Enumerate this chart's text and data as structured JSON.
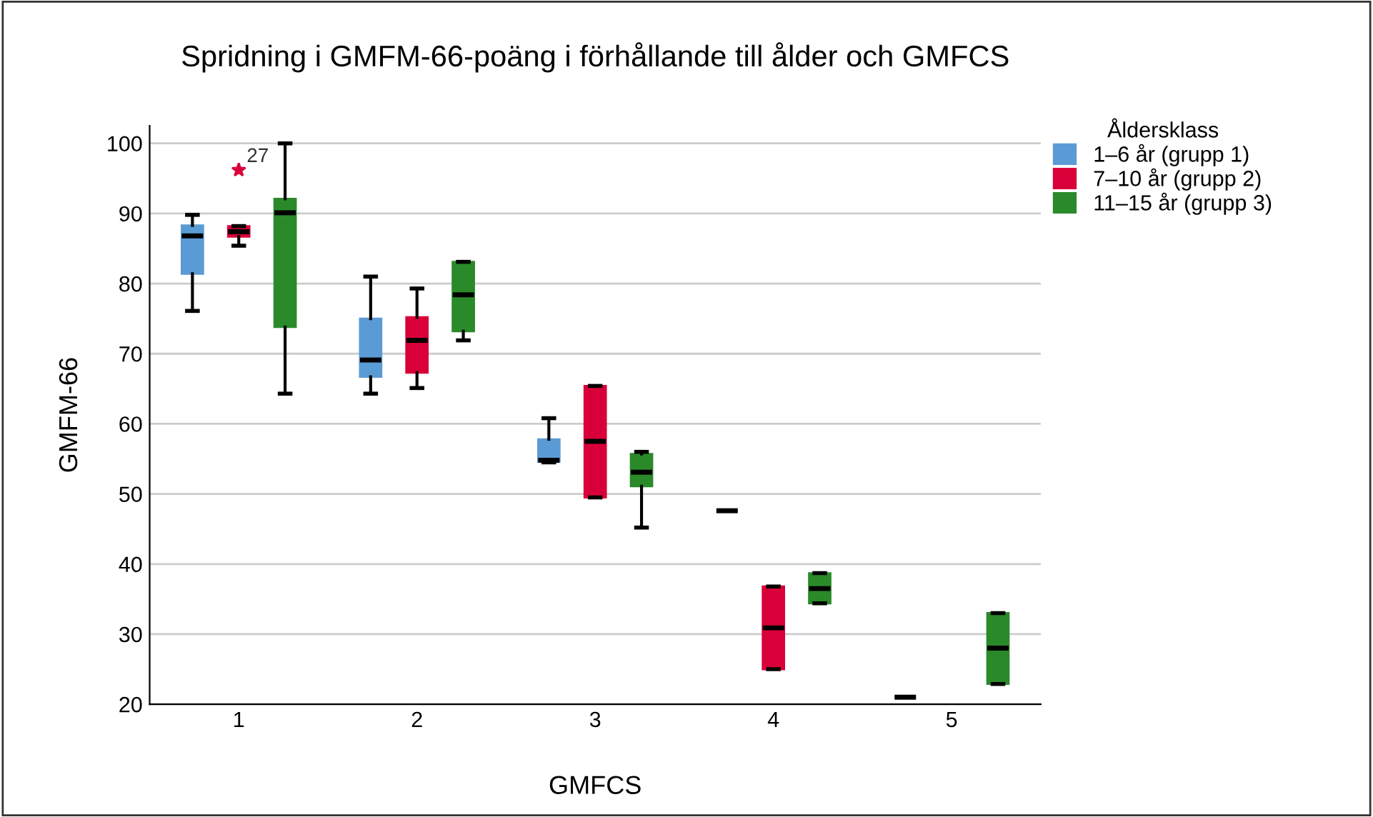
{
  "chart_data": {
    "type": "box",
    "title": "Spridning i GMFM-66-poäng i förhållande till ålder och GMFCS",
    "xlabel": "GMFCS",
    "ylabel": "GMFM-66",
    "legend_title": "Åldersklass",
    "categories": [
      "1",
      "2",
      "3",
      "4",
      "5"
    ],
    "series": [
      {
        "name": "1–6 år (grupp 1)",
        "color": "#5b9bd5",
        "boxes": [
          {
            "low": 76.1,
            "q1": 81.4,
            "median": 86.8,
            "q3": 88.3,
            "high": 89.8
          },
          {
            "low": 64.3,
            "q1": 66.7,
            "median": 69.1,
            "q3": 75.0,
            "high": 81.0
          },
          {
            "low": 54.5,
            "q1": 54.6,
            "median": 54.8,
            "q3": 57.8,
            "high": 60.8
          },
          {
            "low": 47.6,
            "q1": 47.6,
            "median": 47.6,
            "q3": 47.6,
            "high": 47.6
          },
          {
            "low": 21.0,
            "q1": 21.0,
            "median": 21.0,
            "q3": 21.0,
            "high": 21.0
          }
        ]
      },
      {
        "name": "7–10 år (grupp 2)",
        "color": "#d9003a",
        "boxes": [
          {
            "low": 85.4,
            "q1": 86.7,
            "median": 87.4,
            "q3": 88.2,
            "high": 88.2,
            "outliers": [
              96.2
            ]
          },
          {
            "low": 65.1,
            "q1": 67.3,
            "median": 71.9,
            "q3": 75.2,
            "high": 79.3
          },
          {
            "low": 49.5,
            "q1": 49.5,
            "median": 57.5,
            "q3": 65.4,
            "high": 65.4
          },
          {
            "low": 25.0,
            "q1": 25.0,
            "median": 30.9,
            "q3": 36.8,
            "high": 36.8
          },
          null
        ]
      },
      {
        "name": "11–15 år (grupp 3)",
        "color": "#2a8a2a",
        "boxes": [
          {
            "low": 64.3,
            "q1": 73.8,
            "median": 90.1,
            "q3": 92.1,
            "high": 100
          },
          {
            "low": 71.9,
            "q1": 73.2,
            "median": 78.4,
            "q3": 83.1,
            "high": 83.1
          },
          {
            "low": 45.2,
            "q1": 51.1,
            "median": 53.1,
            "q3": 55.7,
            "high": 56.0
          },
          {
            "low": 34.4,
            "q1": 34.4,
            "median": 36.5,
            "q3": 38.7,
            "high": 38.7
          },
          {
            "low": 22.9,
            "q1": 22.9,
            "median": 28.0,
            "q3": 33.0,
            "high": 33.0
          }
        ]
      }
    ],
    "annotations": [
      "27"
    ],
    "ylim": [
      20,
      102.5
    ],
    "yticks": [
      20,
      30,
      40,
      50,
      60,
      70,
      80,
      90,
      100
    ],
    "grid": "y",
    "legend": "top right"
  }
}
